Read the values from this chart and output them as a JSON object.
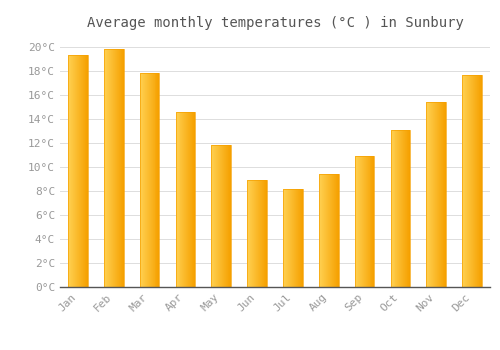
{
  "title": "Average monthly temperatures (°C ) in Sunbury",
  "months": [
    "Jan",
    "Feb",
    "Mar",
    "Apr",
    "May",
    "Jun",
    "Jul",
    "Aug",
    "Sep",
    "Oct",
    "Nov",
    "Dec"
  ],
  "values": [
    19.3,
    19.8,
    17.8,
    14.6,
    11.8,
    8.9,
    8.2,
    9.4,
    10.9,
    13.1,
    15.4,
    17.7
  ],
  "bar_color_light": "#FFD050",
  "bar_color_dark": "#F5A000",
  "background_color": "#FFFFFF",
  "grid_color": "#DDDDDD",
  "text_color": "#999999",
  "spine_color": "#555555",
  "ylim": [
    0,
    21
  ],
  "yticks": [
    0,
    2,
    4,
    6,
    8,
    10,
    12,
    14,
    16,
    18,
    20
  ],
  "title_fontsize": 10,
  "tick_fontsize": 8,
  "bar_width": 0.55
}
